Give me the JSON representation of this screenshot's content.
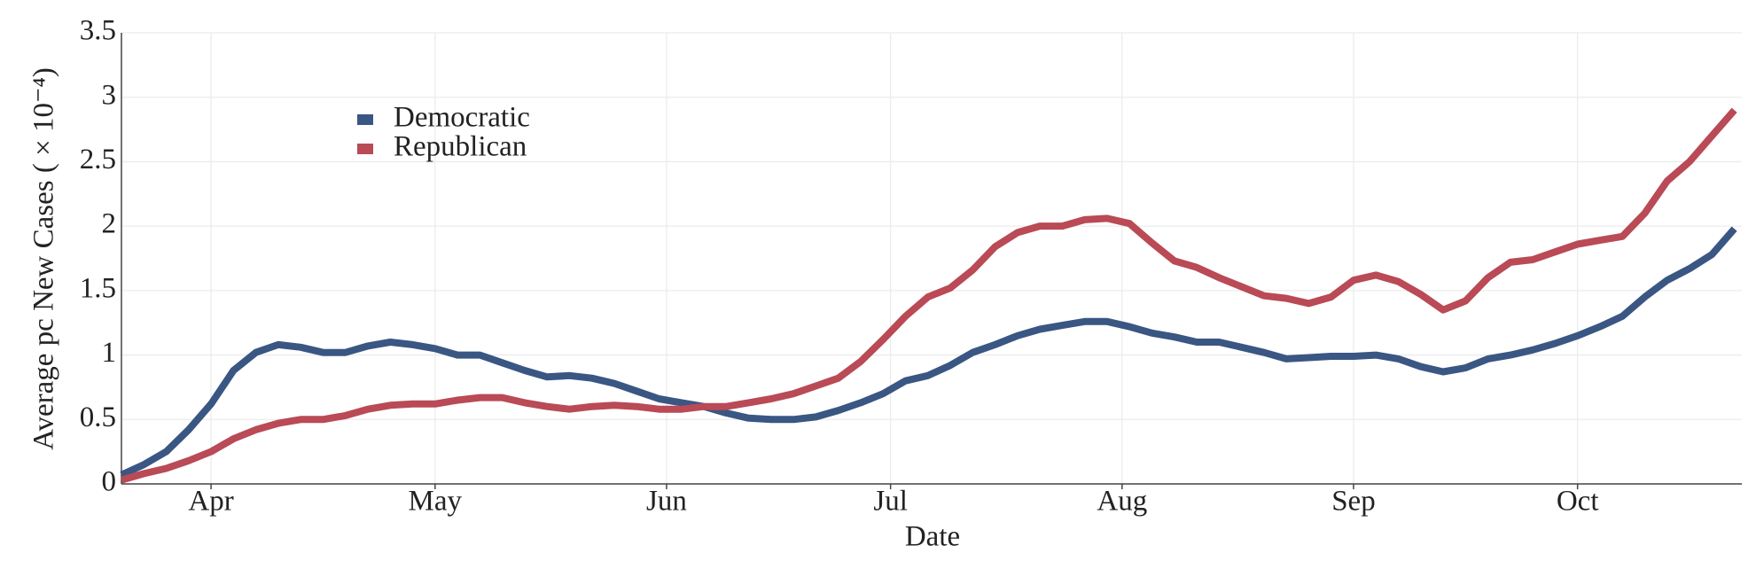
{
  "chart_data": {
    "type": "line",
    "xlabel": "Date",
    "ylabel": "Average pc New Cases ( × 10⁻⁴)",
    "x": [
      80,
      83,
      86,
      89,
      92,
      95,
      98,
      101,
      104,
      107,
      110,
      113,
      116,
      119,
      122,
      125,
      128,
      131,
      134,
      137,
      140,
      143,
      146,
      149,
      152,
      155,
      158,
      161,
      164,
      167,
      170,
      173,
      176,
      179,
      182,
      185,
      188,
      191,
      194,
      197,
      200,
      203,
      206,
      209,
      212,
      215,
      218,
      221,
      224,
      227,
      230,
      233,
      236,
      239,
      242,
      245,
      248,
      251,
      254,
      257,
      260,
      263,
      266,
      269,
      272,
      275,
      278,
      281,
      284,
      287,
      290,
      293,
      296
    ],
    "series": [
      {
        "name": "Democratic",
        "color": "#3a5683",
        "values": [
          0.07,
          0.15,
          0.25,
          0.42,
          0.62,
          0.88,
          1.02,
          1.08,
          1.06,
          1.02,
          1.02,
          1.07,
          1.1,
          1.08,
          1.05,
          1.0,
          1.0,
          0.94,
          0.88,
          0.83,
          0.84,
          0.82,
          0.78,
          0.72,
          0.66,
          0.63,
          0.6,
          0.55,
          0.51,
          0.5,
          0.5,
          0.52,
          0.57,
          0.63,
          0.7,
          0.8,
          0.84,
          0.92,
          1.02,
          1.08,
          1.15,
          1.2,
          1.23,
          1.26,
          1.26,
          1.22,
          1.17,
          1.14,
          1.1,
          1.1,
          1.06,
          1.02,
          0.97,
          0.98,
          0.99,
          0.99,
          1.0,
          0.97,
          0.91,
          0.87,
          0.9,
          0.97,
          1.0,
          1.04,
          1.09,
          1.15,
          1.22,
          1.3,
          1.45,
          1.58,
          1.67,
          1.78,
          1.98
        ]
      },
      {
        "name": "Republican",
        "color": "#b94a56",
        "values": [
          0.03,
          0.08,
          0.12,
          0.18,
          0.25,
          0.35,
          0.42,
          0.47,
          0.5,
          0.5,
          0.53,
          0.58,
          0.61,
          0.62,
          0.62,
          0.65,
          0.67,
          0.67,
          0.63,
          0.6,
          0.58,
          0.6,
          0.61,
          0.6,
          0.58,
          0.58,
          0.6,
          0.6,
          0.63,
          0.66,
          0.7,
          0.76,
          0.82,
          0.95,
          1.12,
          1.3,
          1.45,
          1.52,
          1.66,
          1.84,
          1.95,
          2.0,
          2.0,
          2.05,
          2.06,
          2.02,
          1.87,
          1.73,
          1.68,
          1.6,
          1.53,
          1.46,
          1.44,
          1.4,
          1.45,
          1.58,
          1.62,
          1.57,
          1.47,
          1.35,
          1.42,
          1.6,
          1.72,
          1.74,
          1.8,
          1.86,
          1.89,
          1.92,
          2.1,
          2.35,
          2.5,
          2.7,
          2.9
        ]
      }
    ],
    "xlim": [
      80,
      297
    ],
    "xticks": [
      {
        "value": 92,
        "label": "Apr"
      },
      {
        "value": 122,
        "label": "May"
      },
      {
        "value": 153,
        "label": "Jun"
      },
      {
        "value": 183,
        "label": "Jul"
      },
      {
        "value": 214,
        "label": "Aug"
      },
      {
        "value": 245,
        "label": "Sep"
      },
      {
        "value": 275,
        "label": "Oct"
      }
    ],
    "ylim": [
      0,
      3.5
    ],
    "yticks": [
      0,
      0.5,
      1,
      1.5,
      2,
      2.5,
      3,
      3.5
    ],
    "grid": true,
    "legend": "upper left"
  }
}
